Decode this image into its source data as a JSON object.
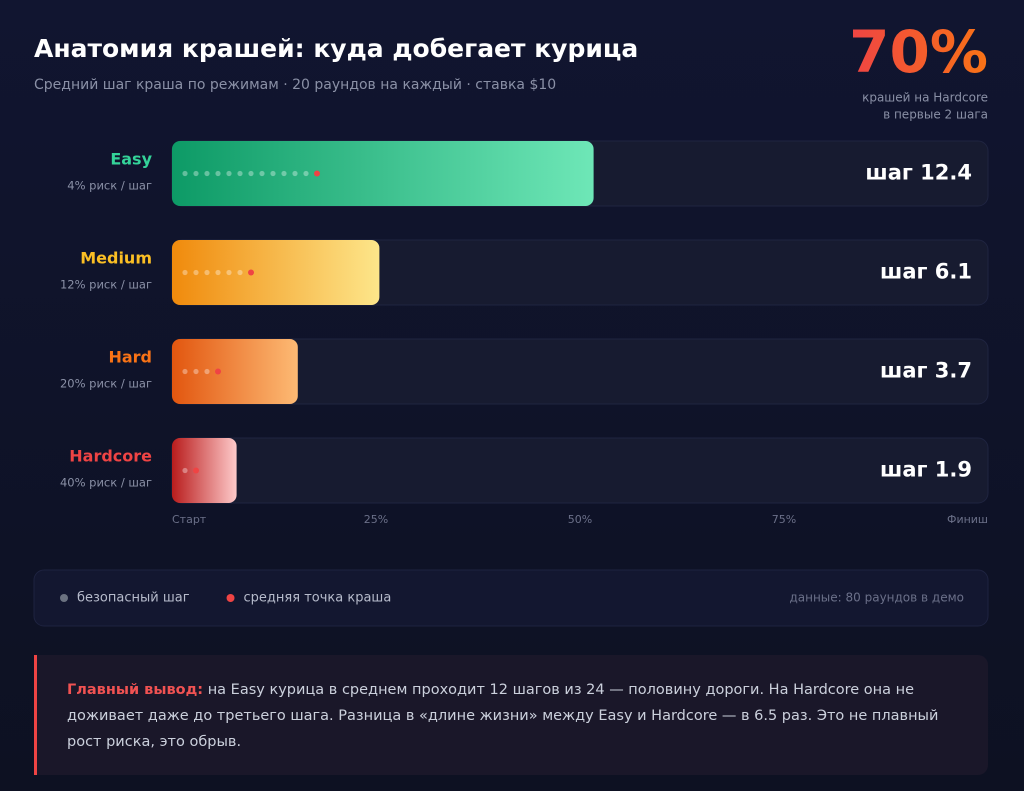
{
  "chart_data": {
    "type": "bar",
    "title": "Анатомия крашей: куда добегает курица",
    "subtitle": "Средний шаг краша по режимам · 20 раундов на каждый · ставка $10",
    "categories": [
      "Easy",
      "Medium",
      "Hard",
      "Hardcore"
    ],
    "risk_labels": [
      "4% риск / шаг",
      "12% риск / шаг",
      "20% риск / шаг",
      "40% риск / шаг"
    ],
    "values": [
      12.4,
      6.1,
      3.7,
      1.9
    ],
    "value_labels": [
      "шаг 12.4",
      "шаг 6.1",
      "шаг 3.7",
      "шаг 1.9"
    ],
    "colors": [
      "#34d399",
      "#fbbf24",
      "#f97316",
      "#ef4444"
    ],
    "gradients": [
      [
        "#0d9a66",
        "#6ee7b7"
      ],
      [
        "#f08a0c",
        "#fde68a"
      ],
      [
        "#e2560f",
        "#fdba74"
      ],
      [
        "#b91c1c",
        "#fecaca"
      ]
    ],
    "xlim": [
      0,
      24
    ],
    "xticks": [
      {
        "value": 0,
        "label": "Старт"
      },
      {
        "value": 6,
        "label": "25%"
      },
      {
        "value": 12,
        "label": "50%"
      },
      {
        "value": 18,
        "label": "75%"
      },
      {
        "value": 24,
        "label": "Финиш"
      }
    ]
  },
  "highlight": {
    "value": "70%",
    "caption": [
      "крашей на Hardcore",
      "в первые 2 шага"
    ]
  },
  "legend": {
    "items": [
      {
        "label": "безопасный шаг",
        "color": "#6b7280"
      },
      {
        "label": "средняя точка краша",
        "color": "#ef4444"
      }
    ],
    "note": "данные: 80 раундов в демо"
  },
  "conclusion": {
    "lead": "Главный вывод:",
    "text": "на Easy курица в среднем проходит 12 шагов из 24 — половину дороги. На Hardcore она не доживает даже до третьего шага. Разница в «длине жизни» между Easy и Hardcore — в 6.5 раз. Это не плавный рост риска, это обрыв."
  }
}
